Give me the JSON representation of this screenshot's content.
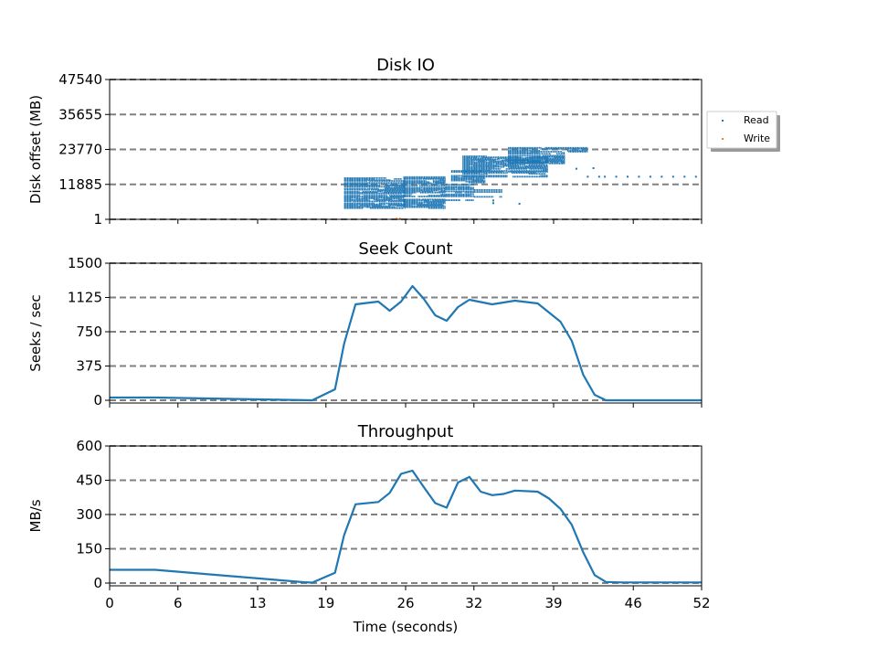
{
  "chart_data": [
    {
      "type": "scatter",
      "title": "Disk IO",
      "ylabel": "Disk offset (MB)",
      "xlim": [
        0,
        52
      ],
      "ylim": [
        1,
        47540
      ],
      "yticks": [
        "1",
        "11885",
        "23770",
        "35655",
        "47540"
      ],
      "grid": "dashed horizontal",
      "legend": {
        "placement": "right-outside",
        "entries": [
          "Read",
          "Write"
        ]
      },
      "series": [
        {
          "name": "Read",
          "color": "#1f77b4",
          "bands": [
            {
              "x0": 20.6,
              "x1": 26.0,
              "y0": 3800,
              "y1": 14200,
              "density": 0.9
            },
            {
              "x0": 25.8,
              "x1": 29.5,
              "y0": 3800,
              "y1": 14500,
              "density": 0.85
            },
            {
              "x0": 29.5,
              "x1": 32.0,
              "y0": 6500,
              "y1": 12000,
              "density": 0.6
            },
            {
              "x0": 32.0,
              "x1": 34.5,
              "y0": 7000,
              "y1": 10000,
              "density": 0.3
            },
            {
              "x0": 30.0,
              "x1": 33.0,
              "y0": 12500,
              "y1": 16500,
              "density": 0.8
            },
            {
              "x0": 31.0,
              "x1": 38.5,
              "y0": 14500,
              "y1": 21500,
              "density": 0.9
            },
            {
              "x0": 35.0,
              "x1": 40.0,
              "y0": 19000,
              "y1": 23000,
              "density": 0.9
            },
            {
              "x0": 35.0,
              "x1": 42.0,
              "y0": 23000,
              "y1": 24600,
              "density": 0.9
            }
          ],
          "points": [
            [
              33.7,
              5500
            ],
            [
              36.0,
              5300
            ],
            [
              33.7,
              6400
            ],
            [
              41.0,
              17200
            ],
            [
              42.5,
              17400
            ],
            [
              43.5,
              14500
            ],
            [
              44.5,
              14500
            ],
            [
              45.5,
              14500
            ],
            [
              46.5,
              14500
            ],
            [
              47.5,
              14500
            ],
            [
              48.5,
              14500
            ],
            [
              49.5,
              14500
            ],
            [
              50.5,
              14500
            ],
            [
              51.5,
              14500
            ],
            [
              42.0,
              14500
            ],
            [
              43.0,
              14500
            ]
          ]
        },
        {
          "name": "Write",
          "color": "#ff7f0e",
          "points": [
            [
              25.2,
              200
            ],
            [
              25.5,
              200
            ]
          ]
        }
      ]
    },
    {
      "type": "line",
      "title": "Seek Count",
      "ylabel": "Seeks / sec",
      "xlim": [
        0,
        52
      ],
      "ylim": [
        -30,
        1500
      ],
      "yticks": [
        "0",
        "375",
        "750",
        "1125",
        "1500"
      ],
      "grid": "dashed horizontal",
      "series": [
        {
          "color": "#1f77b4",
          "x": [
            0,
            4,
            17.8,
            19.8,
            20.6,
            21.6,
            23.6,
            24.6,
            25.6,
            26.6,
            27.6,
            28.6,
            29.6,
            30.6,
            31.6,
            33.6,
            35.6,
            37.6,
            39.6,
            40.6,
            41.6,
            42.6,
            43.6,
            45,
            52
          ],
          "y": [
            30,
            30,
            0,
            120,
            620,
            1050,
            1080,
            980,
            1080,
            1250,
            1110,
            930,
            870,
            1020,
            1100,
            1050,
            1090,
            1060,
            860,
            650,
            280,
            60,
            0,
            0,
            0
          ]
        }
      ]
    },
    {
      "type": "line",
      "title": "Throughput",
      "ylabel": "MB/s",
      "xlabel": "Time (seconds)",
      "xlim": [
        0,
        52
      ],
      "ylim": [
        -12,
        600
      ],
      "yticks": [
        "0",
        "150",
        "300",
        "450",
        "600"
      ],
      "xticks": [
        "0",
        "6",
        "13",
        "19",
        "26",
        "32",
        "39",
        "46",
        "52"
      ],
      "grid": "dashed horizontal",
      "series": [
        {
          "color": "#1f77b4",
          "x": [
            0,
            4,
            17,
            17.8,
            19.8,
            20.6,
            21.6,
            23.6,
            24.6,
            25.6,
            26.6,
            27.6,
            28.6,
            29.6,
            30.6,
            31.6,
            32.6,
            33.6,
            34.6,
            35.6,
            37.6,
            38.6,
            39.6,
            40.6,
            41.6,
            42.6,
            43.6,
            45,
            52
          ],
          "y": [
            58,
            58,
            4,
            2,
            45,
            210,
            345,
            355,
            395,
            478,
            492,
            420,
            350,
            330,
            440,
            465,
            400,
            385,
            390,
            405,
            400,
            370,
            325,
            255,
            135,
            35,
            5,
            3,
            3
          ]
        }
      ]
    }
  ]
}
